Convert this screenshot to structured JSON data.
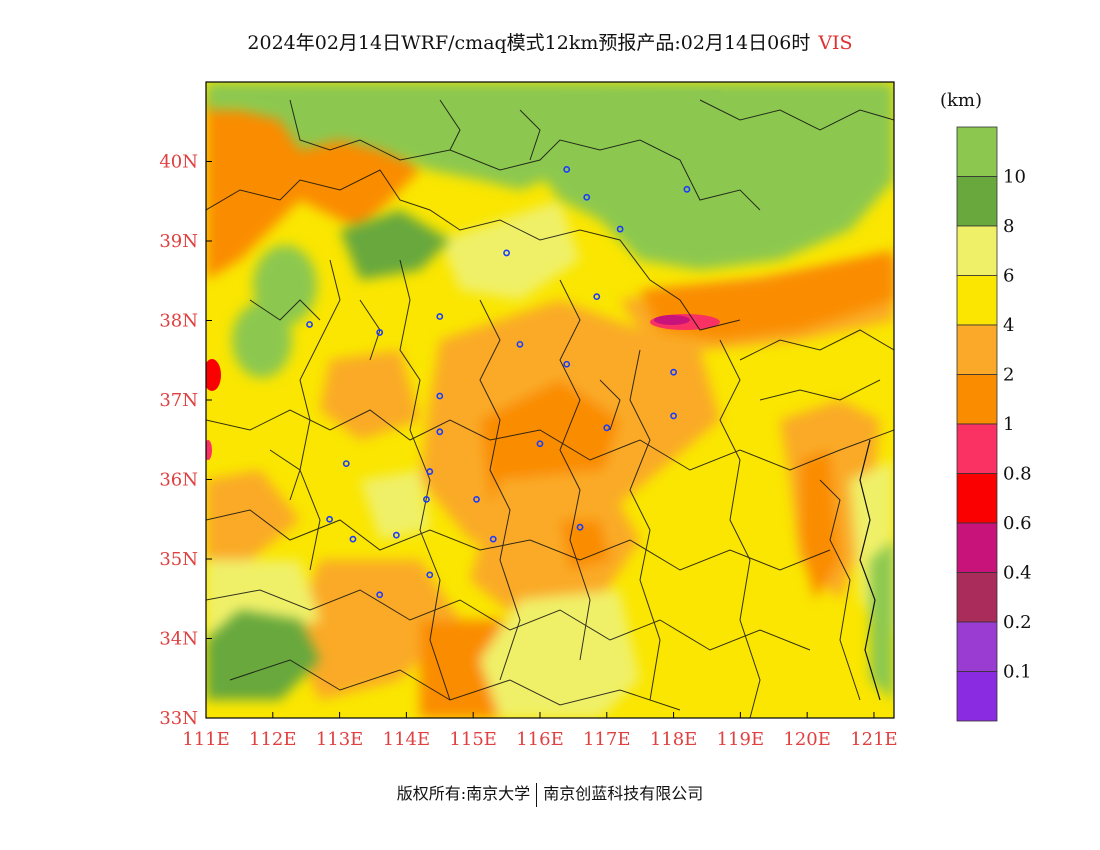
{
  "title": {
    "text": "2024年02月14日WRF/cmaq模式12km预报产品:02月14日06时",
    "variable": "VIS"
  },
  "map": {
    "lon_range": [
      111.0,
      121.3
    ],
    "lat_range": [
      33.0,
      41.0
    ],
    "x_ticks": [
      "111E",
      "112E",
      "113E",
      "114E",
      "115E",
      "116E",
      "117E",
      "118E",
      "119E",
      "120E",
      "121E"
    ],
    "y_ticks": [
      "33N",
      "34N",
      "35N",
      "36N",
      "37N",
      "38N",
      "39N",
      "40N"
    ],
    "city_markers": [
      [
        116.4,
        39.9
      ],
      [
        116.7,
        39.55
      ],
      [
        117.2,
        39.15
      ],
      [
        118.2,
        39.65
      ],
      [
        115.5,
        38.85
      ],
      [
        116.85,
        38.3
      ],
      [
        112.55,
        37.95
      ],
      [
        113.6,
        37.85
      ],
      [
        114.5,
        38.05
      ],
      [
        115.7,
        37.7
      ],
      [
        116.4,
        37.45
      ],
      [
        118.0,
        37.35
      ],
      [
        114.5,
        37.05
      ],
      [
        114.5,
        36.6
      ],
      [
        116.0,
        36.45
      ],
      [
        117.0,
        36.65
      ],
      [
        118.0,
        36.8
      ],
      [
        113.1,
        36.2
      ],
      [
        114.35,
        36.1
      ],
      [
        114.3,
        35.75
      ],
      [
        115.05,
        35.75
      ],
      [
        112.85,
        35.5
      ],
      [
        113.2,
        35.25
      ],
      [
        113.85,
        35.3
      ],
      [
        115.3,
        35.25
      ],
      [
        116.6,
        35.4
      ],
      [
        114.35,
        34.8
      ],
      [
        113.6,
        34.55
      ]
    ]
  },
  "colorbar": {
    "unit": "(km)",
    "labels": [
      "10",
      "8",
      "6",
      "4",
      "2",
      "1",
      "0.8",
      "0.6",
      "0.4",
      "0.2",
      "0.1"
    ],
    "colors": [
      "#8cc850",
      "#68a83c",
      "#f0f068",
      "#fae600",
      "#faaa28",
      "#fa8c00",
      "#fa3264",
      "#fa0000",
      "#c8147a",
      "#aa2c5a",
      "#9a3cd2",
      "#8a2be2"
    ]
  },
  "footer": {
    "copyright": "版权所有:南京大学",
    "company": "南京创蓝科技有限公司"
  }
}
